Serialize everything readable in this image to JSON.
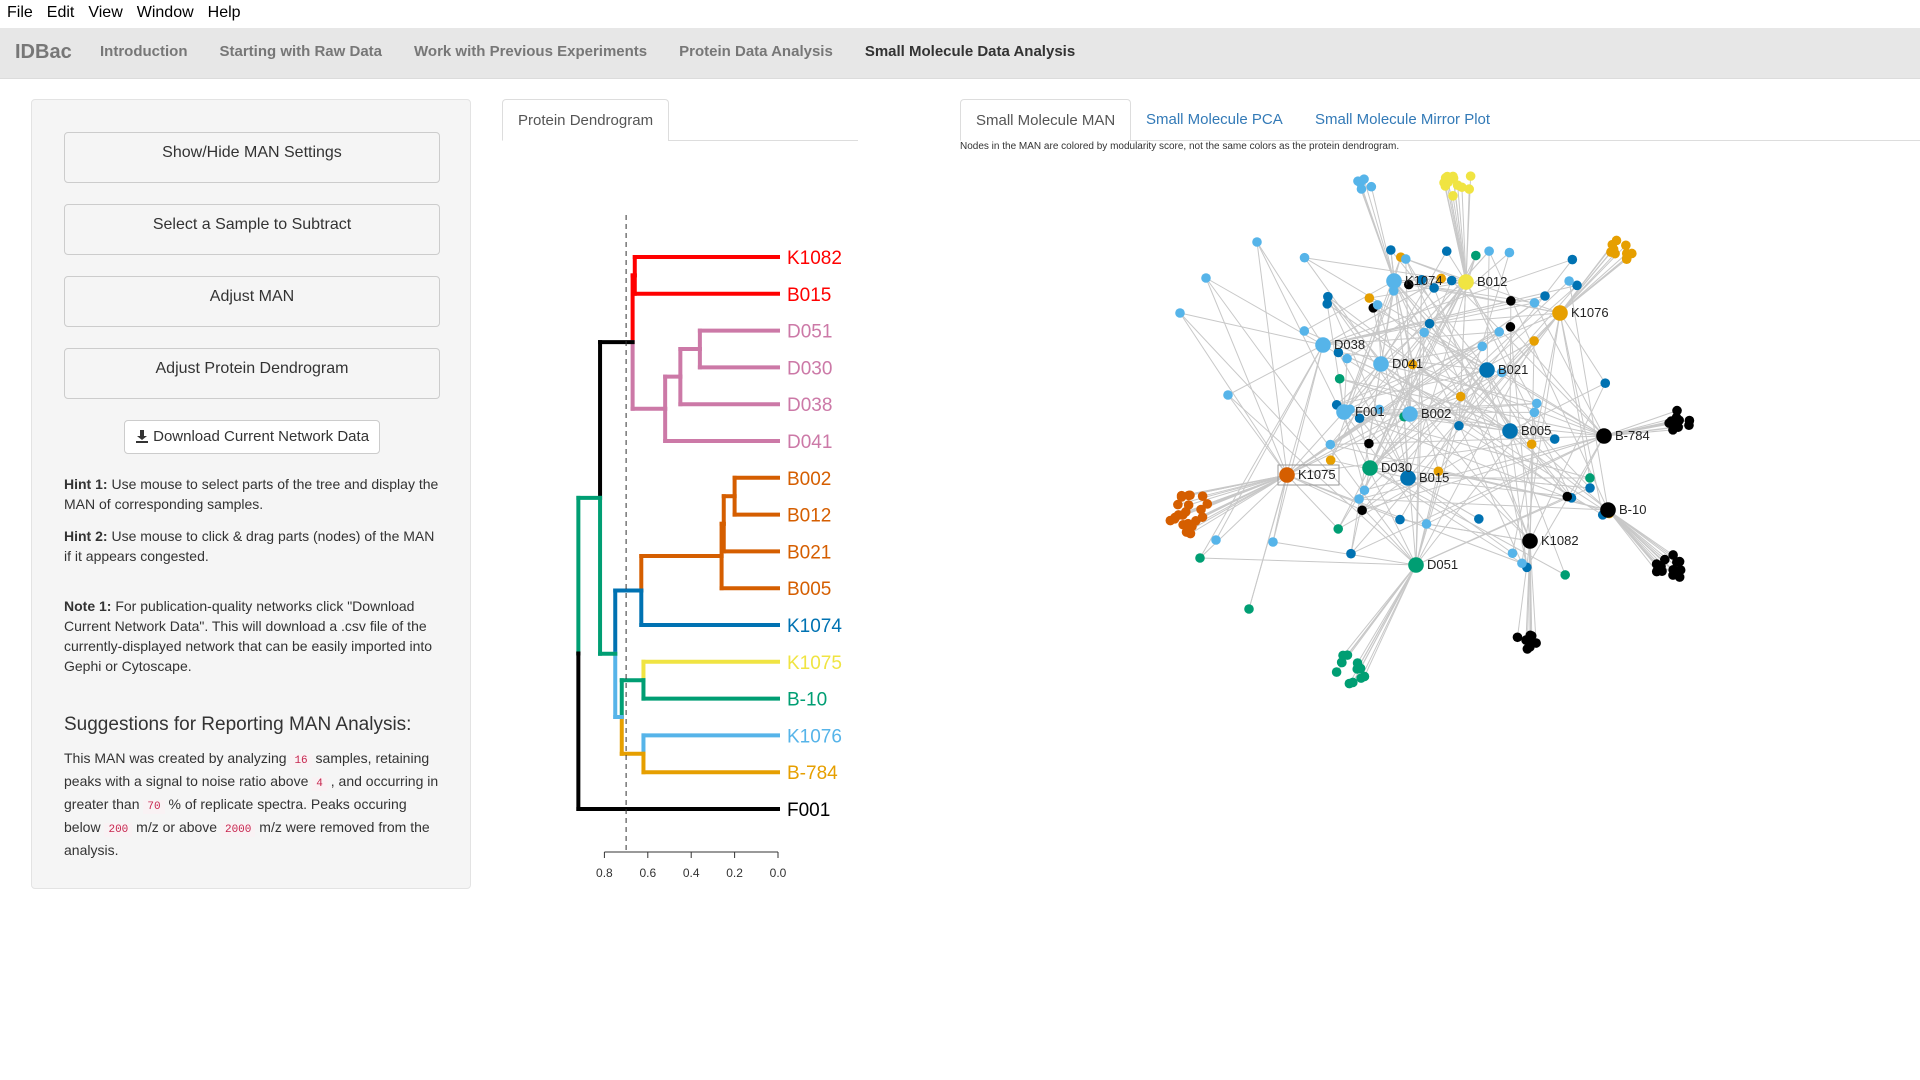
{
  "menubar": {
    "items": [
      "File",
      "Edit",
      "View",
      "Window",
      "Help"
    ]
  },
  "navbar": {
    "brand": "IDBac",
    "tabs": [
      "Introduction",
      "Starting with Raw Data",
      "Work with Previous Experiments",
      "Protein Data Analysis",
      "Small Molecule Data Analysis"
    ],
    "active_tab": "Small Molecule Data Analysis"
  },
  "sidebar": {
    "buttons": [
      "Show/Hide MAN Settings",
      "Select a Sample to Subtract",
      "Adjust MAN",
      "Adjust Protein Dendrogram"
    ],
    "download_label": "Download Current Network Data",
    "hint1_label": "Hint 1:",
    "hint1_text": " Use mouse to select parts of the tree and display the MAN of corresponding samples.",
    "hint2_label": "Hint 2:",
    "hint2_text": " Use mouse to click & drag parts (nodes) of the MAN if it appears congested.",
    "note1_label": "Note 1:",
    "note1_text": " For publication-quality networks click \"Download Current Network Data\". This will download a .csv file of the currently-displayed network that can be easily imported into Gephi or Cytoscape.",
    "suggestions_title": "Suggestions for Reporting MAN Analysis:",
    "report": {
      "t1": "This MAN was created by analyzing ",
      "v1": "16",
      "t2": " samples, retaining peaks with a signal to noise ratio above ",
      "v2": "4",
      "t3": " , and occurring in greater than ",
      "v3": "70",
      "t4": " % of replicate spectra. Peaks occuring below ",
      "v4": "200",
      "t5": " m/z or above ",
      "v5": "2000",
      "t6": " m/z were removed from the analysis."
    }
  },
  "dendrogram": {
    "tab_label": "Protein Dendrogram",
    "axis_ticks": [
      "0.8",
      "0.6",
      "0.4",
      "0.2",
      "0.0"
    ],
    "cut_height": 0.7,
    "leaves": [
      {
        "label": "K1082",
        "color": "#ff0000"
      },
      {
        "label": "B015",
        "color": "#ff0000"
      },
      {
        "label": "D051",
        "color": "#cc79a7"
      },
      {
        "label": "D030",
        "color": "#cc79a7"
      },
      {
        "label": "D038",
        "color": "#cc79a7"
      },
      {
        "label": "D041",
        "color": "#cc79a7"
      },
      {
        "label": "B002",
        "color": "#d55e00"
      },
      {
        "label": "B012",
        "color": "#d55e00"
      },
      {
        "label": "B021",
        "color": "#d55e00"
      },
      {
        "label": "B005",
        "color": "#d55e00"
      },
      {
        "label": "K1074",
        "color": "#0072b2"
      },
      {
        "label": "K1075",
        "color": "#f0e442"
      },
      {
        "label": "B-10",
        "color": "#009e73"
      },
      {
        "label": "K1076",
        "color": "#56b4e9"
      },
      {
        "label": "B-784",
        "color": "#e69f00"
      },
      {
        "label": "F001",
        "color": "#000000"
      }
    ]
  },
  "man": {
    "tabs": [
      "Small Molecule MAN",
      "Small Molecule PCA",
      "Small Molecule Mirror Plot"
    ],
    "active_tab": "Small Molecule MAN",
    "note": "Nodes in the MAN are colored by modularity score, not the same colors as the protein dendrogram.",
    "colors": {
      "light_blue": "#56b4e9",
      "dark_blue": "#0072b2",
      "yellow": "#f0e442",
      "orange": "#e69f00",
      "vermillion": "#d55e00",
      "green": "#009e73",
      "black": "#000000",
      "edge": "#c8c8c8"
    },
    "sample_nodes": [
      {
        "label": "K1074",
        "color": "light_blue"
      },
      {
        "label": "B012",
        "color": "yellow"
      },
      {
        "label": "K1076",
        "color": "orange"
      },
      {
        "label": "D038",
        "color": "light_blue"
      },
      {
        "label": "D041",
        "color": "light_blue"
      },
      {
        "label": "B021",
        "color": "dark_blue"
      },
      {
        "label": "F001",
        "color": "light_blue"
      },
      {
        "label": "B002",
        "color": "light_blue"
      },
      {
        "label": "B005",
        "color": "dark_blue"
      },
      {
        "label": "B-784",
        "color": "black"
      },
      {
        "label": "K1075",
        "color": "vermillion"
      },
      {
        "label": "D030",
        "color": "green"
      },
      {
        "label": "B015",
        "color": "dark_blue"
      },
      {
        "label": "B-10",
        "color": "black"
      },
      {
        "label": "K1082",
        "color": "black"
      },
      {
        "label": "D051",
        "color": "green"
      }
    ]
  }
}
